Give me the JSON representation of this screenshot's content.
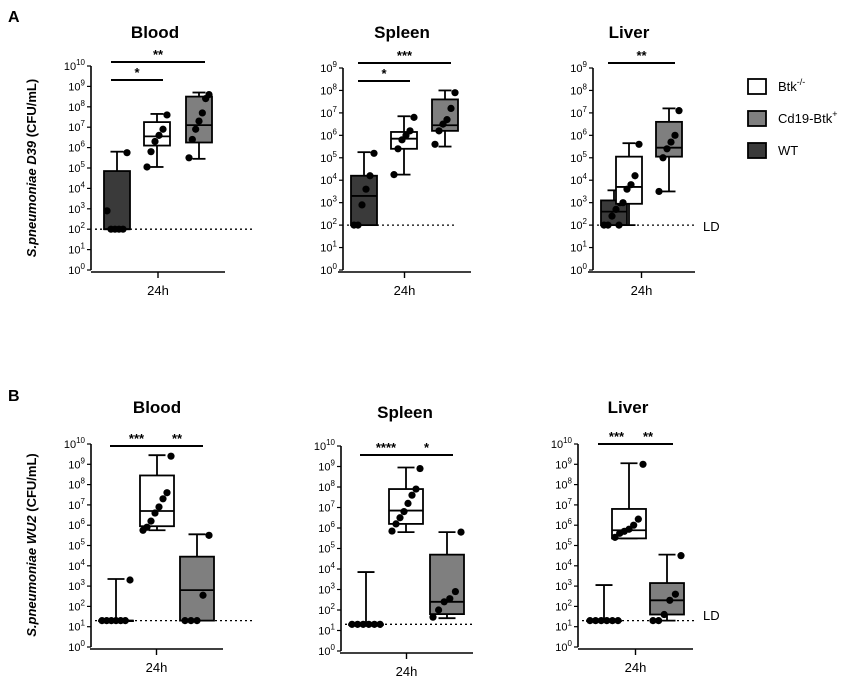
{
  "figure": {
    "panel_letters": [
      "A",
      "B"
    ],
    "legend": [
      {
        "label": "Btk",
        "sup": "-/-",
        "color": "#ffffff"
      },
      {
        "label": "Cd19-Btk",
        "sup": "+",
        "color": "#7f7f7f"
      },
      {
        "label": "WT",
        "sup": "",
        "color": "#3a3a3a"
      }
    ],
    "ld_label": "LD"
  },
  "colors": {
    "Btk-/-": "#ffffff",
    "Cd19-Btk+": "#7f7f7f",
    "WT": "#3a3a3a",
    "axis": "#000000"
  },
  "chart_data": [
    {
      "type": "box",
      "panel": "A",
      "title": "Blood",
      "ylabel_pre": "S.pneumoniae D39",
      "ylabel_post": " (CFU/mL)",
      "xlabel": "24h",
      "y_scale": "log10",
      "ylim_exp": [
        0,
        10
      ],
      "detection_limit": 100,
      "significance": [
        {
          "label": "*",
          "from": "WT",
          "to": "Btk-/-"
        },
        {
          "label": "**",
          "from": "WT",
          "to": "Cd19-Btk+"
        }
      ],
      "series": [
        {
          "name": "WT",
          "min_exp": 2.0,
          "q1_exp": 2.0,
          "median_exp": 2.0,
          "q3_exp": 4.85,
          "max_exp": 5.8,
          "points_exp": [
            2.9,
            2.0,
            2.0,
            2.0,
            2.0,
            5.75
          ]
        },
        {
          "name": "Btk-/-",
          "min_exp": 5.05,
          "q1_exp": 6.1,
          "median_exp": 6.55,
          "q3_exp": 7.25,
          "max_exp": 7.65,
          "points_exp": [
            5.05,
            5.8,
            6.3,
            6.6,
            6.9,
            7.6
          ]
        },
        {
          "name": "Cd19-Btk+",
          "min_exp": 5.45,
          "q1_exp": 6.25,
          "median_exp": 7.1,
          "q3_exp": 8.5,
          "max_exp": 8.7,
          "points_exp": [
            5.5,
            6.4,
            6.9,
            7.3,
            7.7,
            8.4,
            8.6
          ]
        }
      ]
    },
    {
      "type": "box",
      "panel": "A",
      "title": "Spleen",
      "xlabel": "24h",
      "y_scale": "log10",
      "ylim_exp": [
        0,
        9
      ],
      "detection_limit": 100,
      "significance": [
        {
          "label": "*",
          "from": "WT",
          "to": "Btk-/-"
        },
        {
          "label": "***",
          "from": "WT",
          "to": "Cd19-Btk+"
        }
      ],
      "series": [
        {
          "name": "WT",
          "min_exp": 2.0,
          "q1_exp": 2.0,
          "median_exp": 3.3,
          "q3_exp": 4.2,
          "max_exp": 5.25,
          "points_exp": [
            2.0,
            2.0,
            2.9,
            3.6,
            4.2,
            5.2
          ]
        },
        {
          "name": "Btk-/-",
          "min_exp": 4.25,
          "q1_exp": 5.4,
          "median_exp": 5.85,
          "q3_exp": 6.15,
          "max_exp": 6.85,
          "points_exp": [
            4.25,
            5.4,
            5.8,
            6.0,
            6.2,
            6.8
          ]
        },
        {
          "name": "Cd19-Btk+",
          "min_exp": 5.5,
          "q1_exp": 6.2,
          "median_exp": 6.45,
          "q3_exp": 7.6,
          "max_exp": 8.0,
          "points_exp": [
            5.6,
            6.2,
            6.5,
            6.7,
            7.2,
            7.9
          ]
        }
      ]
    },
    {
      "type": "box",
      "panel": "A",
      "title": "Liver",
      "xlabel": "24h",
      "y_scale": "log10",
      "ylim_exp": [
        0,
        9
      ],
      "detection_limit": 100,
      "significance": [
        {
          "label": "**",
          "from": "WT",
          "to": "Cd19-Btk+"
        }
      ],
      "series": [
        {
          "name": "WT",
          "min_exp": 2.0,
          "q1_exp": 2.0,
          "median_exp": 2.6,
          "q3_exp": 3.1,
          "max_exp": 3.55,
          "points_exp": [
            2.0,
            2.0,
            2.4,
            2.7,
            3.0,
            3.5
          ]
        },
        {
          "name": "Btk-/-",
          "min_exp": 2.0,
          "q1_exp": 2.95,
          "median_exp": 3.7,
          "q3_exp": 5.05,
          "max_exp": 5.65,
          "points_exp": [
            2.0,
            3.0,
            3.6,
            3.8,
            4.2,
            5.6
          ]
        },
        {
          "name": "Cd19-Btk+",
          "min_exp": 3.5,
          "q1_exp": 5.05,
          "median_exp": 5.45,
          "q3_exp": 6.6,
          "max_exp": 7.2,
          "points_exp": [
            3.5,
            5.0,
            5.4,
            5.7,
            6.0,
            7.1
          ]
        }
      ]
    },
    {
      "type": "box",
      "panel": "B",
      "title": "Blood",
      "ylabel_pre": "S.pneumoniae WU2",
      "ylabel_post": " (CFU/mL)",
      "xlabel": "24h",
      "y_scale": "log10",
      "ylim_exp": [
        0,
        10
      ],
      "detection_limit": 20,
      "significance": [
        {
          "label": "***",
          "from": "WT",
          "to": "Btk-/-"
        },
        {
          "label": "**",
          "from": "Btk-/-",
          "to": "Cd19-Btk+"
        }
      ],
      "series": [
        {
          "name": "WT",
          "min_exp": 1.3,
          "q1_exp": 1.3,
          "median_exp": 1.3,
          "q3_exp": 1.3,
          "max_exp": 3.35,
          "points_exp": [
            1.3,
            1.3,
            1.3,
            1.3,
            1.3,
            1.3,
            3.3
          ]
        },
        {
          "name": "Btk-/-",
          "min_exp": 5.75,
          "q1_exp": 5.95,
          "median_exp": 6.7,
          "q3_exp": 8.45,
          "max_exp": 9.45,
          "points_exp": [
            5.75,
            5.9,
            6.2,
            6.6,
            6.9,
            7.3,
            7.6,
            9.4
          ]
        },
        {
          "name": "Cd19-Btk+",
          "min_exp": 1.3,
          "q1_exp": 1.3,
          "median_exp": 2.8,
          "q3_exp": 4.45,
          "max_exp": 5.55,
          "points_exp": [
            1.3,
            1.3,
            1.3,
            2.55,
            5.5
          ]
        }
      ]
    },
    {
      "type": "box",
      "panel": "B",
      "title": "Spleen",
      "xlabel": "24h",
      "y_scale": "log10",
      "ylim_exp": [
        0,
        10
      ],
      "detection_limit": 20,
      "significance": [
        {
          "label": "****",
          "from": "WT",
          "to": "Btk-/-"
        },
        {
          "label": "*",
          "from": "Btk-/-",
          "to": "Cd19-Btk+"
        }
      ],
      "series": [
        {
          "name": "WT",
          "min_exp": 1.3,
          "q1_exp": 1.3,
          "median_exp": 1.3,
          "q3_exp": 1.3,
          "max_exp": 3.85,
          "points_exp": [
            1.3,
            1.3,
            1.3,
            1.3,
            1.3,
            1.3
          ]
        },
        {
          "name": "Btk-/-",
          "min_exp": 5.8,
          "q1_exp": 6.2,
          "median_exp": 6.85,
          "q3_exp": 7.9,
          "max_exp": 8.95,
          "points_exp": [
            5.85,
            6.2,
            6.5,
            6.8,
            7.2,
            7.6,
            7.9,
            8.9
          ]
        },
        {
          "name": "Cd19-Btk+",
          "min_exp": 1.6,
          "q1_exp": 1.8,
          "median_exp": 2.4,
          "q3_exp": 4.7,
          "max_exp": 5.8,
          "points_exp": [
            1.65,
            2.0,
            2.4,
            2.55,
            2.9,
            5.8
          ]
        }
      ]
    },
    {
      "type": "box",
      "panel": "B",
      "title": "Liver",
      "xlabel": "24h",
      "y_scale": "log10",
      "ylim_exp": [
        0,
        10
      ],
      "detection_limit": 20,
      "significance": [
        {
          "label": "***",
          "from": "WT",
          "to": "Btk-/-"
        },
        {
          "label": "**",
          "from": "Btk-/-",
          "to": "Cd19-Btk+"
        }
      ],
      "series": [
        {
          "name": "WT",
          "min_exp": 1.3,
          "q1_exp": 1.3,
          "median_exp": 1.3,
          "q3_exp": 1.3,
          "max_exp": 3.05,
          "points_exp": [
            1.3,
            1.3,
            1.3,
            1.3,
            1.3,
            1.3
          ]
        },
        {
          "name": "Btk-/-",
          "min_exp": 5.35,
          "q1_exp": 5.35,
          "median_exp": 5.75,
          "q3_exp": 6.8,
          "max_exp": 9.05,
          "points_exp": [
            5.4,
            5.6,
            5.7,
            5.8,
            6.0,
            6.3,
            9.0
          ]
        },
        {
          "name": "Cd19-Btk+",
          "min_exp": 1.3,
          "q1_exp": 1.6,
          "median_exp": 2.3,
          "q3_exp": 3.15,
          "max_exp": 4.55,
          "points_exp": [
            1.3,
            1.3,
            1.6,
            2.3,
            2.6,
            4.5
          ]
        }
      ]
    }
  ]
}
